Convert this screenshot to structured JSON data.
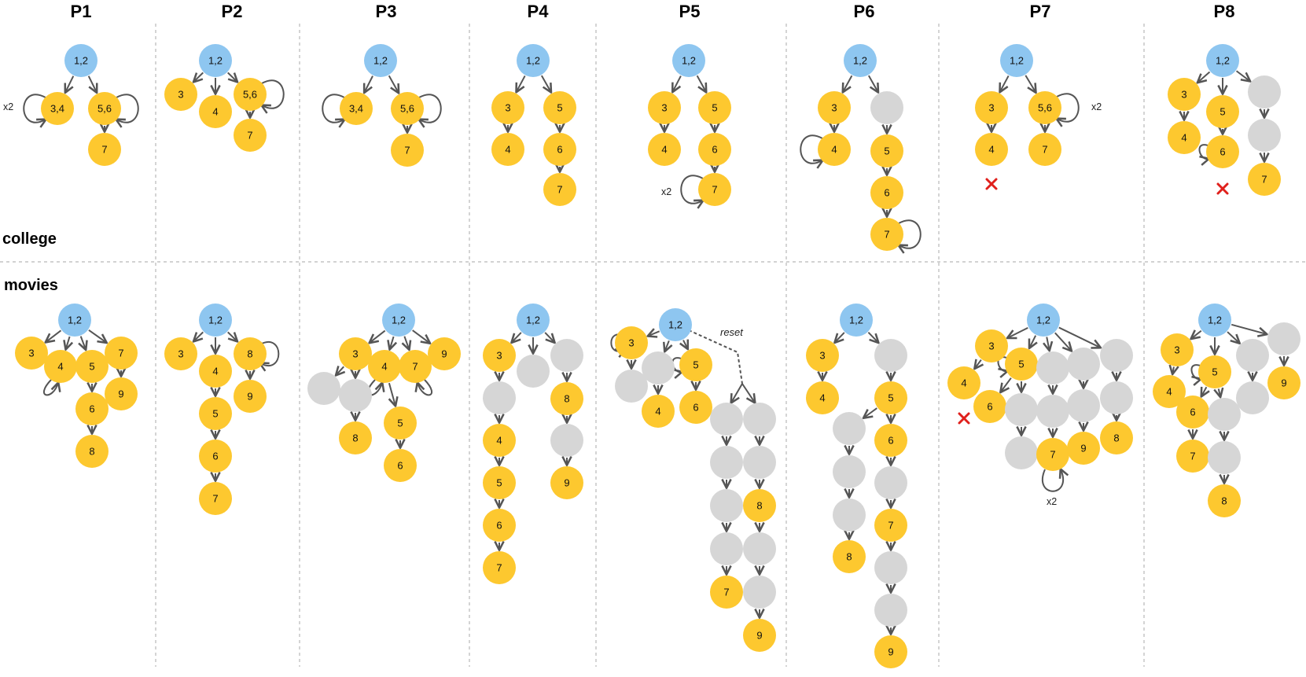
{
  "headers": [
    "P1",
    "P2",
    "P3",
    "P4",
    "P5",
    "P6",
    "P7",
    "P8"
  ],
  "rows": [
    {
      "label": "college"
    },
    {
      "label": "movies"
    }
  ],
  "annotations": {
    "repeat_label": "x2",
    "reset_label": "reset"
  },
  "colors": {
    "start": "#8ec6f0",
    "visited": "#fdc82f",
    "unvisited": "#d6d6d6",
    "edge": "#555555",
    "fail": "#e0201c"
  },
  "node_labels": {
    "start": "1,2",
    "n3": "3",
    "n4": "4",
    "n5": "5",
    "n6": "6",
    "n7": "7",
    "n8": "8",
    "n9": "9",
    "n34": "3,4",
    "n56": "5,6"
  }
}
